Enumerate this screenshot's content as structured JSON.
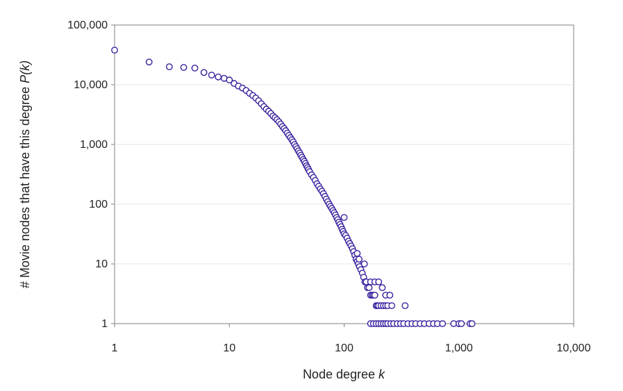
{
  "chart_data": {
    "type": "scatter",
    "title": "",
    "xlabel": "Node degree",
    "xlabel_var": "k",
    "ylabel": "# Movie nodes that have this degree",
    "ylabel_var": "P(k)",
    "x_scale": "log",
    "y_scale": "log",
    "xlim": [
      1,
      10000
    ],
    "ylim": [
      1,
      100000
    ],
    "x_ticks": [
      1,
      10,
      100,
      1000,
      10000
    ],
    "x_tick_labels": [
      "1",
      "10",
      "100",
      "1,000",
      "10,000"
    ],
    "y_ticks": [
      1,
      10,
      100,
      1000,
      10000,
      100000
    ],
    "y_tick_labels": [
      "1",
      "10",
      "100",
      "1,000",
      "10,000",
      "100,000"
    ],
    "grid": "horizontal",
    "marker": "open-circle",
    "marker_color": "#3a1f9e",
    "series": [
      {
        "points": [
          [
            1,
            38000
          ],
          [
            2,
            24000
          ],
          [
            3,
            20000
          ],
          [
            4,
            19500
          ],
          [
            5,
            19000
          ],
          [
            6,
            16000
          ],
          [
            7,
            14500
          ],
          [
            8,
            13500
          ],
          [
            9,
            12800
          ],
          [
            10,
            12000
          ],
          [
            11,
            10500
          ],
          [
            12,
            9500
          ],
          [
            13,
            8800
          ],
          [
            14,
            8000
          ],
          [
            15,
            7200
          ],
          [
            16,
            6600
          ],
          [
            17,
            6000
          ],
          [
            18,
            5400
          ],
          [
            19,
            4800
          ],
          [
            20,
            4300
          ],
          [
            21,
            3900
          ],
          [
            22,
            3600
          ],
          [
            23,
            3300
          ],
          [
            24,
            3000
          ],
          [
            25,
            2800
          ],
          [
            26,
            2600
          ],
          [
            27,
            2400
          ],
          [
            28,
            2200
          ],
          [
            29,
            2000
          ],
          [
            30,
            1850
          ],
          [
            31,
            1700
          ],
          [
            32,
            1550
          ],
          [
            33,
            1420
          ],
          [
            34,
            1300
          ],
          [
            35,
            1200
          ],
          [
            36,
            1100
          ],
          [
            37,
            1000
          ],
          [
            38,
            920
          ],
          [
            39,
            850
          ],
          [
            40,
            780
          ],
          [
            41,
            720
          ],
          [
            42,
            660
          ],
          [
            43,
            610
          ],
          [
            44,
            560
          ],
          [
            45,
            520
          ],
          [
            46,
            480
          ],
          [
            47,
            440
          ],
          [
            48,
            410
          ],
          [
            49,
            380
          ],
          [
            50,
            350
          ],
          [
            52,
            310
          ],
          [
            54,
            280
          ],
          [
            56,
            250
          ],
          [
            58,
            220
          ],
          [
            60,
            200
          ],
          [
            62,
            180
          ],
          [
            64,
            165
          ],
          [
            66,
            150
          ],
          [
            68,
            135
          ],
          [
            70,
            122
          ],
          [
            72,
            110
          ],
          [
            74,
            100
          ],
          [
            76,
            92
          ],
          [
            78,
            85
          ],
          [
            80,
            78
          ],
          [
            82,
            72
          ],
          [
            84,
            66
          ],
          [
            86,
            60
          ],
          [
            88,
            55
          ],
          [
            90,
            50
          ],
          [
            92,
            46
          ],
          [
            94,
            42
          ],
          [
            96,
            38
          ],
          [
            98,
            35
          ],
          [
            100,
            60
          ],
          [
            100,
            32
          ],
          [
            103,
            30
          ],
          [
            106,
            27
          ],
          [
            109,
            24
          ],
          [
            112,
            22
          ],
          [
            115,
            20
          ],
          [
            118,
            18
          ],
          [
            121,
            16
          ],
          [
            124,
            14
          ],
          [
            127,
            12
          ],
          [
            130,
            11
          ],
          [
            133,
            10
          ],
          [
            136,
            9
          ],
          [
            140,
            8
          ],
          [
            144,
            7
          ],
          [
            148,
            6
          ],
          [
            152,
            5
          ],
          [
            156,
            5
          ],
          [
            160,
            4
          ],
          [
            165,
            4
          ],
          [
            170,
            3
          ],
          [
            175,
            3
          ],
          [
            180,
            3
          ],
          [
            185,
            3
          ],
          [
            190,
            2
          ],
          [
            195,
            2
          ],
          [
            200,
            2
          ],
          [
            210,
            2
          ],
          [
            220,
            2
          ],
          [
            230,
            2
          ],
          [
            240,
            2
          ],
          [
            260,
            2
          ],
          [
            340,
            2
          ],
          [
            130,
            15
          ],
          [
            135,
            12
          ],
          [
            150,
            10
          ],
          [
            170,
            5
          ],
          [
            185,
            5
          ],
          [
            200,
            5
          ],
          [
            215,
            4
          ],
          [
            230,
            3
          ],
          [
            250,
            3
          ],
          [
            170,
            1
          ],
          [
            180,
            1
          ],
          [
            190,
            1
          ],
          [
            200,
            1
          ],
          [
            210,
            1
          ],
          [
            220,
            1
          ],
          [
            230,
            1
          ],
          [
            240,
            1
          ],
          [
            255,
            1
          ],
          [
            270,
            1
          ],
          [
            290,
            1
          ],
          [
            310,
            1
          ],
          [
            330,
            1
          ],
          [
            360,
            1
          ],
          [
            390,
            1
          ],
          [
            420,
            1
          ],
          [
            460,
            1
          ],
          [
            500,
            1
          ],
          [
            550,
            1
          ],
          [
            600,
            1
          ],
          [
            650,
            1
          ],
          [
            720,
            1
          ],
          [
            900,
            1
          ],
          [
            1000,
            1
          ],
          [
            1050,
            1
          ],
          [
            1250,
            1
          ],
          [
            1300,
            1
          ]
        ]
      }
    ]
  }
}
